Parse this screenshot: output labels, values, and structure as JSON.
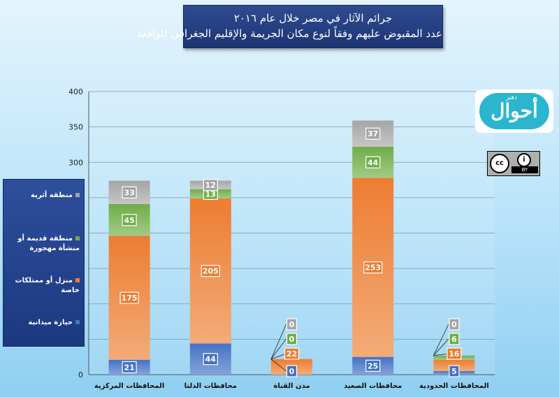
{
  "chart_data": {
    "type": "bar",
    "stacked": true,
    "title": "جرائم الآثار في مصر خلال عام ٢٠١٦",
    "subtitle": "عدد المقبوض عليهم وفقاً لنوع مكان الجريمة والإقليم الجغرافي للواقعة",
    "categories": [
      "المحافظات المركزية",
      "محافظات الدلتا",
      "مدن القناة",
      "محافظات الصعيد",
      "المحافظات الحدودية"
    ],
    "series": [
      {
        "name": "حيازة ميدانية",
        "values": [
          21,
          44,
          0,
          25,
          5
        ],
        "color": "#4472c4"
      },
      {
        "name": "منزل أو ممتلكات خاصة",
        "values": [
          175,
          205,
          22,
          253,
          16
        ],
        "color": "#ed7d31"
      },
      {
        "name": "منطقة قديمة أو منشأة مهجورة",
        "values": [
          45,
          13,
          0,
          44,
          6
        ],
        "color": "#70ad47"
      },
      {
        "name": "منطقة أثرية",
        "values": [
          33,
          12,
          0,
          37,
          0
        ],
        "color": "#a5a5a5"
      }
    ],
    "ylim": [
      0,
      400
    ],
    "yticks": [
      0,
      50,
      100,
      150,
      200,
      250,
      300,
      350,
      400
    ],
    "grid": true,
    "legend": "left"
  },
  "logo": {
    "main": "أحوال",
    "small": "دفتر"
  },
  "license": {
    "cc": "cc",
    "by": "BY"
  }
}
